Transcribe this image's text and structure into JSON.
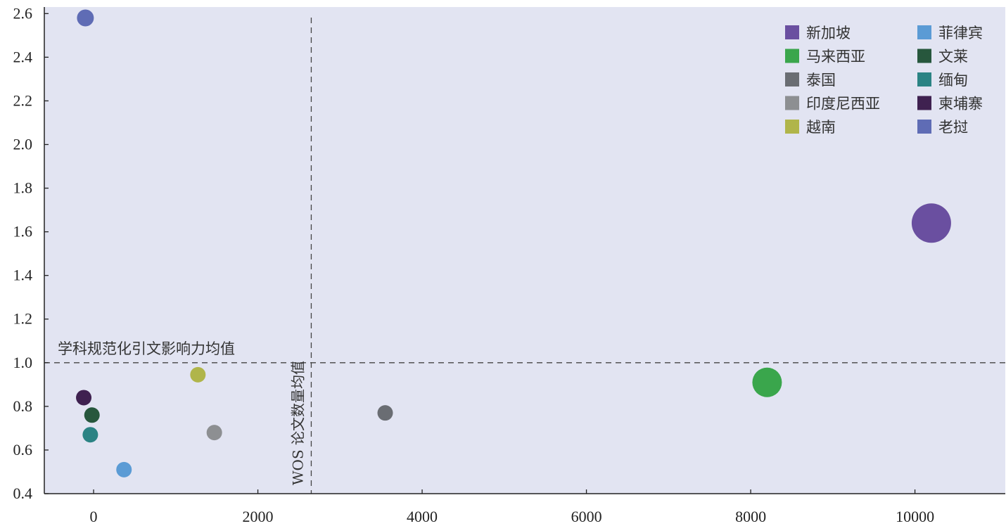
{
  "chart_data": {
    "type": "scatter",
    "title": "",
    "xlabel": "",
    "ylabel": "",
    "xlim": [
      -600,
      11100
    ],
    "ylim": [
      0.4,
      2.63
    ],
    "x_ticks": [
      0,
      2000,
      4000,
      6000,
      8000,
      10000
    ],
    "y_ticks": [
      0.4,
      0.6,
      0.8,
      1.0,
      1.2,
      1.4,
      1.6,
      1.8,
      2.0,
      2.2,
      2.4,
      2.6
    ],
    "x_tick_labels": [
      "0",
      "2000",
      "4000",
      "6000",
      "8000",
      "10000"
    ],
    "y_tick_labels": [
      "0.4",
      "0.6",
      "0.8",
      "1.0",
      "1.2",
      "1.4",
      "1.6",
      "1.8",
      "2.0",
      "2.2",
      "2.4",
      "2.6"
    ],
    "grid": false,
    "legend_position": "top-right",
    "reference_lines": {
      "horizontal": {
        "value": 1.0,
        "label": "学科规范化引文影响力均值"
      },
      "vertical": {
        "value": 2650,
        "label": "WOS 论文数量均值"
      }
    },
    "series": [
      {
        "name": "新加坡",
        "color": "#6a4fa0",
        "x": 10200,
        "y": 1.64,
        "size": 28
      },
      {
        "name": "菲律宾",
        "color": "#5b9bd5",
        "x": 370,
        "y": 0.51,
        "size": 11
      },
      {
        "name": "马来西亚",
        "color": "#3aa64c",
        "x": 8200,
        "y": 0.91,
        "size": 21
      },
      {
        "name": "文莱",
        "color": "#27573d",
        "x": -20,
        "y": 0.76,
        "size": 11
      },
      {
        "name": "泰国",
        "color": "#6a6d73",
        "x": 3550,
        "y": 0.77,
        "size": 11
      },
      {
        "name": "缅甸",
        "color": "#2b8384",
        "x": -40,
        "y": 0.67,
        "size": 11
      },
      {
        "name": "印度尼西亚",
        "color": "#8d8f92",
        "x": 1470,
        "y": 0.68,
        "size": 11
      },
      {
        "name": "柬埔寨",
        "color": "#3f2150",
        "x": -120,
        "y": 0.84,
        "size": 11
      },
      {
        "name": "越南",
        "color": "#b0b54a",
        "x": 1270,
        "y": 0.945,
        "size": 11
      },
      {
        "name": "老挝",
        "color": "#5f6cb5",
        "x": -100,
        "y": 2.58,
        "size": 12
      }
    ],
    "legend_order": [
      "新加坡",
      "菲律宾",
      "马来西亚",
      "文莱",
      "泰国",
      "缅甸",
      "印度尼西亚",
      "柬埔寨",
      "越南",
      "老挝"
    ]
  },
  "colors": {
    "plot_background": "#e2e4f2",
    "axis": "#222222",
    "reference_line": "#444444"
  }
}
